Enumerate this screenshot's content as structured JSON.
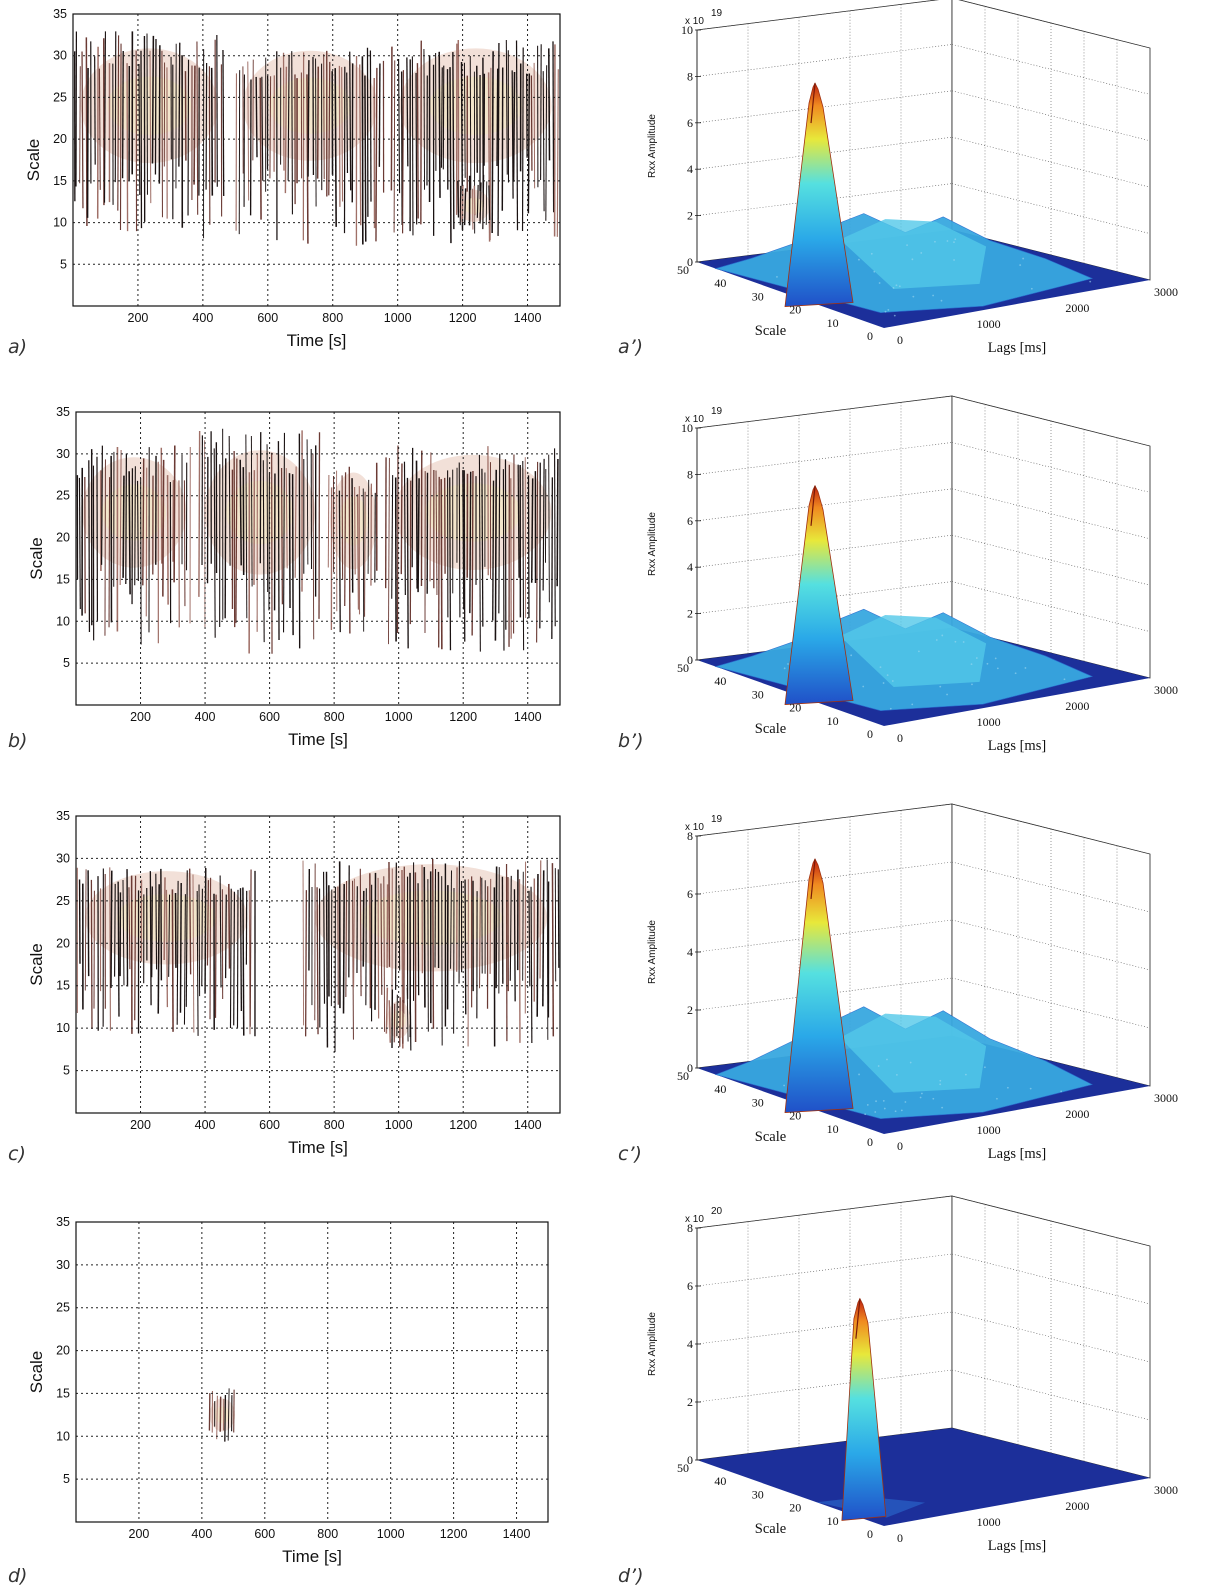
{
  "chart_data": [
    {
      "type": "heatmap",
      "panel_label": "a)",
      "xlabel": "Time [s]",
      "ylabel": "Scale",
      "xlim": [
        0,
        1500
      ],
      "ylim": [
        0,
        35
      ],
      "xticks": [
        "200",
        "400",
        "600",
        "800",
        "1000",
        "1200",
        "1400"
      ],
      "yticks": [
        "5",
        "10",
        "15",
        "20",
        "25",
        "30",
        "35"
      ],
      "grid": true,
      "blobs": [
        {
          "t": [
            0,
            470
          ],
          "scale": [
            8,
            33
          ],
          "center_scale": 24
        },
        {
          "t": [
            500,
            960
          ],
          "scale": [
            7,
            31
          ],
          "center_scale": 24
        },
        {
          "t": [
            980,
            1500
          ],
          "scale": [
            7,
            32
          ],
          "center_scale": 24
        },
        {
          "t": [
            1180,
            1290
          ],
          "scale": [
            9,
            16
          ],
          "center_scale": 12
        }
      ]
    },
    {
      "type": "surface3d",
      "panel_label": "a’)",
      "xlabel": "Lags [ms]",
      "ylabel": "Scale",
      "zlabel": "Rxx Amplitude",
      "z_multiplier": "x 10",
      "z_exponent": "19",
      "xticks": [
        "0",
        "1000",
        "2000",
        "3000"
      ],
      "yticks": [
        "0",
        "10",
        "20",
        "30",
        "40",
        "50"
      ],
      "zticks": [
        "0",
        "2",
        "4",
        "6",
        "8",
        "10"
      ],
      "zlim": [
        0,
        10
      ],
      "peak": {
        "lag_ms": 0,
        "scale": 24,
        "amplitude": 9.2
      },
      "shoulder_amplitude": 3.2
    },
    {
      "type": "heatmap",
      "panel_label": "b)",
      "xlabel": "Time [s]",
      "ylabel": "Scale",
      "xlim": [
        0,
        1500
      ],
      "ylim": [
        0,
        35
      ],
      "xticks": [
        "200",
        "400",
        "600",
        "800",
        "1000",
        "1200",
        "1400"
      ],
      "yticks": [
        "5",
        "10",
        "15",
        "20",
        "25",
        "30",
        "35"
      ],
      "grid": true,
      "blobs": [
        {
          "t": [
            0,
            360
          ],
          "scale": [
            7,
            31
          ],
          "center_scale": 23
        },
        {
          "t": [
            380,
            760
          ],
          "scale": [
            6,
            33
          ],
          "center_scale": 23
        },
        {
          "t": [
            780,
            940
          ],
          "scale": [
            8,
            29
          ],
          "center_scale": 22
        },
        {
          "t": [
            960,
            1500
          ],
          "scale": [
            6,
            31
          ],
          "center_scale": 23
        }
      ]
    },
    {
      "type": "surface3d",
      "panel_label": "b’)",
      "xlabel": "Lags [ms]",
      "ylabel": "Scale",
      "zlabel": "Rxx Amplitude",
      "z_multiplier": "x 10",
      "z_exponent": "19",
      "xticks": [
        "0",
        "1000",
        "2000",
        "3000"
      ],
      "yticks": [
        "0",
        "10",
        "20",
        "30",
        "40",
        "50"
      ],
      "zticks": [
        "0",
        "2",
        "4",
        "6",
        "8",
        "10"
      ],
      "zlim": [
        0,
        10
      ],
      "peak": {
        "lag_ms": 0,
        "scale": 24,
        "amplitude": 9.0
      },
      "shoulder_amplitude": 3.3
    },
    {
      "type": "heatmap",
      "panel_label": "c)",
      "xlabel": "Time [s]",
      "ylabel": "Scale",
      "xlim": [
        0,
        1500
      ],
      "ylim": [
        0,
        35
      ],
      "xticks": [
        "200",
        "400",
        "600",
        "800",
        "1000",
        "1200",
        "1400"
      ],
      "yticks": [
        "5",
        "10",
        "15",
        "20",
        "25",
        "30",
        "35"
      ],
      "grid": true,
      "blobs": [
        {
          "t": [
            0,
            560
          ],
          "scale": [
            9,
            29
          ],
          "center_scale": 23
        },
        {
          "t": [
            700,
            1500
          ],
          "scale": [
            7,
            30
          ],
          "center_scale": 23
        },
        {
          "t": [
            960,
            1040
          ],
          "scale": [
            7,
            15
          ],
          "center_scale": 11
        }
      ]
    },
    {
      "type": "surface3d",
      "panel_label": "c’)",
      "xlabel": "Lags [ms]",
      "ylabel": "Scale",
      "zlabel": "Rxx Amplitude",
      "z_multiplier": "x 10",
      "z_exponent": "19",
      "xticks": [
        "0",
        "1000",
        "2000",
        "3000"
      ],
      "yticks": [
        "0",
        "10",
        "20",
        "30",
        "40",
        "50"
      ],
      "zticks": [
        "0",
        "2",
        "4",
        "6",
        "8"
      ],
      "zlim": [
        0,
        8
      ],
      "peak": {
        "lag_ms": 0,
        "scale": 24,
        "amplitude": 8.4
      },
      "shoulder_amplitude": 3.0
    },
    {
      "type": "heatmap",
      "panel_label": "d)",
      "xlabel": "Time [s]",
      "ylabel": "Scale",
      "xlim": [
        0,
        1500
      ],
      "ylim": [
        0,
        35
      ],
      "xticks": [
        "200",
        "400",
        "600",
        "800",
        "1000",
        "1200",
        "1400"
      ],
      "yticks": [
        "5",
        "10",
        "15",
        "20",
        "25",
        "30",
        "35"
      ],
      "grid": true,
      "blobs": [
        {
          "t": [
            420,
            510
          ],
          "scale": [
            9,
            16
          ],
          "center_scale": 12.5
        }
      ]
    },
    {
      "type": "surface3d",
      "panel_label": "d’)",
      "xlabel": "Lags [ms]",
      "ylabel": "Scale",
      "zlabel": "Rxx Amplitude",
      "z_multiplier": "x 10",
      "z_exponent": "20",
      "xticks": [
        "0",
        "1000",
        "2000",
        "3000"
      ],
      "yticks": [
        "0",
        "10",
        "20",
        "30",
        "40",
        "50"
      ],
      "zticks": [
        "0",
        "2",
        "4",
        "6",
        "8"
      ],
      "zlim": [
        0,
        8
      ],
      "peak": {
        "lag_ms": 0,
        "scale": 12,
        "amplitude": 7.3
      },
      "shoulder_amplitude": 0
    }
  ]
}
